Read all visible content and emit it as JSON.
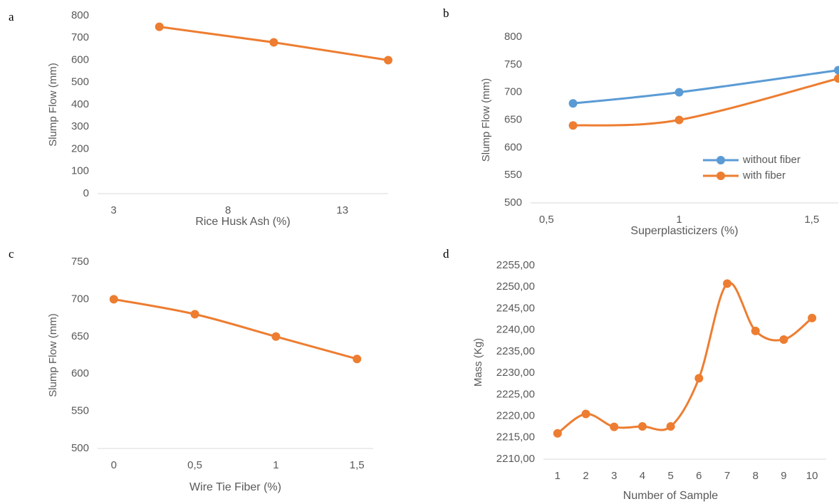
{
  "chart_data": [
    {
      "type": "line",
      "label": "a",
      "y_label": "Slump Flow (mm)",
      "x_label": "Rice Husk Ash (%)",
      "x": [
        5,
        10,
        15
      ],
      "series": [
        {
          "name": null,
          "color": "#ed7d31",
          "values": [
            750,
            680,
            600
          ]
        }
      ],
      "xlim": [
        2.3,
        15
      ],
      "xticks": [
        3,
        8,
        13
      ],
      "ylim": [
        0,
        800
      ],
      "yticks": [
        0,
        100,
        200,
        300,
        400,
        500,
        600,
        700,
        800
      ],
      "smooth": false
    },
    {
      "type": "line",
      "label": "b",
      "y_label": "Slump Flow (mm)",
      "x_label": "Superplasticizers (%)",
      "x": [
        0.6,
        1,
        1.6
      ],
      "series": [
        {
          "name": "without fiber",
          "color": "#5b9bd5",
          "values": [
            680,
            700,
            740
          ]
        },
        {
          "name": "with fiber",
          "color": "#ed7d31",
          "values": [
            640,
            650,
            725
          ]
        }
      ],
      "xlim": [
        0.44,
        1.6
      ],
      "xticks": [
        {
          "value": 0.5,
          "label": "0,5"
        },
        1,
        {
          "value": 1.5,
          "label": "1,5"
        }
      ],
      "ylim": [
        500,
        800
      ],
      "yticks": [
        500,
        550,
        600,
        650,
        700,
        750,
        800
      ],
      "smooth": true,
      "legend": "lower right"
    },
    {
      "type": "line",
      "label": "c",
      "y_label": "Slump Flow (mm)",
      "x_label": "Wire Tie Fiber (%)",
      "x": [
        0,
        0.5,
        1,
        1.5
      ],
      "series": [
        {
          "name": null,
          "color": "#ed7d31",
          "values": [
            700,
            680,
            650,
            620
          ]
        }
      ],
      "xlim": [
        -0.1,
        1.6
      ],
      "xticks": [
        0,
        {
          "value": 0.5,
          "label": "0,5"
        },
        1,
        {
          "value": 1.5,
          "label": "1,5"
        }
      ],
      "ylim": [
        500,
        750
      ],
      "yticks": [
        500,
        550,
        600,
        650,
        700,
        750
      ],
      "smooth": true
    },
    {
      "type": "line",
      "label": "d",
      "y_label": "Mass (Kg)",
      "x_label": "Number of Sample",
      "categories": [
        "1",
        "2",
        "3",
        "4",
        "5",
        "6",
        "7",
        "8",
        "9",
        "10"
      ],
      "series": [
        {
          "name": null,
          "color": "#ed7d31",
          "values": [
            2216,
            2220.5,
            2217.5,
            2217.6,
            2217.6,
            2228.8,
            2250.8,
            2239.8,
            2237.8,
            2242.8
          ]
        }
      ],
      "ylim": [
        2210,
        2255
      ],
      "yticks": [
        {
          "value": 2210,
          "label": "2210,00"
        },
        {
          "value": 2215,
          "label": "2215,00"
        },
        {
          "value": 2220,
          "label": "2220,00"
        },
        {
          "value": 2225,
          "label": "2225,00"
        },
        {
          "value": 2230,
          "label": "2230,00"
        },
        {
          "value": 2235,
          "label": "2235,00"
        },
        {
          "value": 2240,
          "label": "2240,00"
        },
        {
          "value": 2245,
          "label": "2245,00"
        },
        {
          "value": 2250,
          "label": "2250,00"
        },
        {
          "value": 2255,
          "label": "2255,00"
        }
      ],
      "smooth": true
    }
  ]
}
